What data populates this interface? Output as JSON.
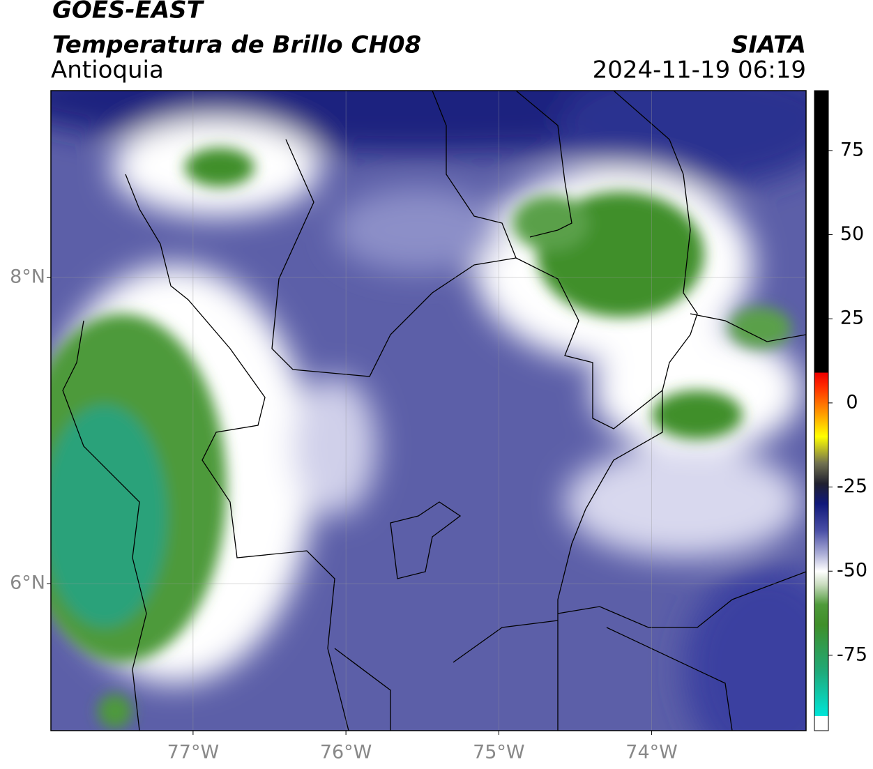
{
  "header": {
    "title": "GOES-EAST",
    "subtitle": "Temperatura de Brillo CH08",
    "region": "Antioquia",
    "source": "SIATA",
    "timestamp": "2024-11-19 06:19"
  },
  "map": {
    "xlim": [
      -77.93,
      -72.99
    ],
    "ylim": [
      5.04,
      9.22
    ],
    "xticks": [
      {
        "value": -77,
        "label": "77°W"
      },
      {
        "value": -76,
        "label": "76°W"
      },
      {
        "value": -75,
        "label": "75°W"
      },
      {
        "value": -74,
        "label": "74°W"
      }
    ],
    "yticks": [
      {
        "value": 8,
        "label": "8°N"
      },
      {
        "value": 6,
        "label": "6°N"
      }
    ],
    "grid": true
  },
  "colorbar": {
    "lim": [
      -97.4,
      92.8
    ],
    "ticks": [
      75,
      50,
      25,
      0,
      -25,
      -50,
      -75
    ],
    "stops": [
      {
        "value": -97.4,
        "color": "#ffffff"
      },
      {
        "value": -93,
        "color": "#ffffff"
      },
      {
        "value": -93,
        "color": "#00e5d8"
      },
      {
        "value": -80,
        "color": "#1faa7a"
      },
      {
        "value": -66,
        "color": "#3f8f2a"
      },
      {
        "value": -60,
        "color": "#4e9a3a"
      },
      {
        "value": -54,
        "color": "#c9dcbf"
      },
      {
        "value": -50,
        "color": "#ffffff"
      },
      {
        "value": -45,
        "color": "#aeb0d8"
      },
      {
        "value": -38,
        "color": "#4a4fa6"
      },
      {
        "value": -30,
        "color": "#10187a"
      },
      {
        "value": -24,
        "color": "#202030"
      },
      {
        "value": -18,
        "color": "#707050"
      },
      {
        "value": -10,
        "color": "#ffff00"
      },
      {
        "value": -3,
        "color": "#ff9900"
      },
      {
        "value": 5,
        "color": "#ff2a00"
      },
      {
        "value": 9,
        "color": "#ee0000"
      },
      {
        "value": 9,
        "color": "#000000"
      },
      {
        "value": 92.8,
        "color": "#000000"
      }
    ]
  }
}
